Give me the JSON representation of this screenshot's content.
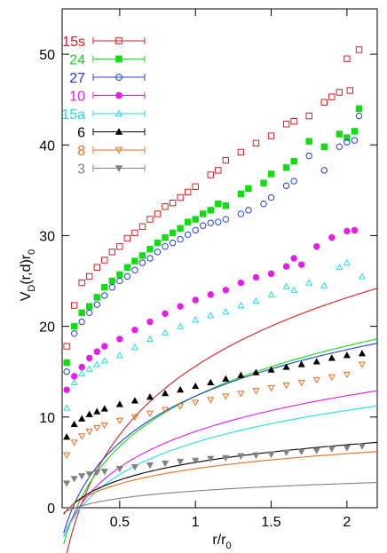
{
  "chart_data": {
    "type": "scatter",
    "title": "",
    "xlabel": "r/r",
    "xlabel_sub": "0",
    "ylabel": "V",
    "ylabel_sub": "D",
    "ylabel_rest": "(r,d)r",
    "ylabel_rest_sub": "0",
    "xlim": [
      0.12,
      2.2
    ],
    "ylim": [
      0,
      55
    ],
    "xticks": [
      0.5,
      1,
      1.5,
      2
    ],
    "xtick_labels": [
      "0.5",
      "1",
      "1.5",
      "2"
    ],
    "yticks": [
      0,
      10,
      20,
      30,
      40,
      50
    ],
    "ytick_labels": [
      "0",
      "10",
      "20",
      "30",
      "40",
      "50"
    ],
    "grid": false,
    "legend_position": "top-left",
    "series": [
      {
        "name": "15s",
        "color": "#e41a1c",
        "marker": "open-square",
        "fit": [
          15.6,
          10.9
        ],
        "points": [
          [
            0.15,
            17.8
          ],
          [
            0.2,
            22.3
          ],
          [
            0.25,
            24.8
          ],
          [
            0.3,
            25.5
          ],
          [
            0.35,
            26.5
          ],
          [
            0.4,
            27.3
          ],
          [
            0.45,
            28.2
          ],
          [
            0.5,
            28.8
          ],
          [
            0.55,
            29.7
          ],
          [
            0.6,
            30.3
          ],
          [
            0.65,
            31.0
          ],
          [
            0.7,
            31.8
          ],
          [
            0.75,
            32.4
          ],
          [
            0.8,
            33.2
          ],
          [
            0.85,
            33.6
          ],
          [
            0.9,
            34.2
          ],
          [
            0.95,
            34.8
          ],
          [
            1.0,
            35.4
          ],
          [
            1.1,
            36.7
          ],
          [
            1.15,
            37.2
          ],
          [
            1.2,
            38.3
          ],
          [
            1.3,
            39.2
          ],
          [
            1.4,
            40.2
          ],
          [
            1.5,
            41.0
          ],
          [
            1.6,
            42.3
          ],
          [
            1.65,
            42.6
          ],
          [
            1.75,
            43.2
          ],
          [
            1.85,
            44.7
          ],
          [
            1.9,
            45.3
          ],
          [
            1.95,
            45.8
          ],
          [
            2.0,
            49.5
          ],
          [
            2.02,
            46.0
          ],
          [
            2.08,
            50.5
          ]
        ]
      },
      {
        "name": "24",
        "color": "#11dd11",
        "marker": "filled-square",
        "fit": [
          12.3,
          8.0
        ],
        "points": [
          [
            0.15,
            16.0
          ],
          [
            0.2,
            20.0
          ],
          [
            0.25,
            21.5
          ],
          [
            0.3,
            22.2
          ],
          [
            0.35,
            23.2
          ],
          [
            0.4,
            24.3
          ],
          [
            0.45,
            25.0
          ],
          [
            0.5,
            25.7
          ],
          [
            0.55,
            26.5
          ],
          [
            0.6,
            27.2
          ],
          [
            0.65,
            27.8
          ],
          [
            0.7,
            28.5
          ],
          [
            0.75,
            29.2
          ],
          [
            0.8,
            29.8
          ],
          [
            0.85,
            30.3
          ],
          [
            0.9,
            30.8
          ],
          [
            0.95,
            31.5
          ],
          [
            1.0,
            31.8
          ],
          [
            1.05,
            32.4
          ],
          [
            1.1,
            32.8
          ],
          [
            1.15,
            33.5
          ],
          [
            1.2,
            33.3
          ],
          [
            1.3,
            34.6
          ],
          [
            1.35,
            35.2
          ],
          [
            1.45,
            35.8
          ],
          [
            1.5,
            36.8
          ],
          [
            1.6,
            37.5
          ],
          [
            1.65,
            38.2
          ],
          [
            1.75,
            40.4
          ],
          [
            1.85,
            39.8
          ],
          [
            1.95,
            41.2
          ],
          [
            2.0,
            40.8
          ],
          [
            2.05,
            41.5
          ],
          [
            2.08,
            44.0
          ]
        ]
      },
      {
        "name": "27",
        "color": "#1f3fd8",
        "marker": "open-circle",
        "fit": [
          12.3,
          7.4
        ],
        "points": [
          [
            0.15,
            15.0
          ],
          [
            0.2,
            19.2
          ],
          [
            0.25,
            20.5
          ],
          [
            0.3,
            21.5
          ],
          [
            0.35,
            22.4
          ],
          [
            0.4,
            23.4
          ],
          [
            0.45,
            24.3
          ],
          [
            0.5,
            25.0
          ],
          [
            0.55,
            25.5
          ],
          [
            0.6,
            26.2
          ],
          [
            0.65,
            27.0
          ],
          [
            0.7,
            27.5
          ],
          [
            0.75,
            28.2
          ],
          [
            0.8,
            28.8
          ],
          [
            0.85,
            29.2
          ],
          [
            0.9,
            29.6
          ],
          [
            0.95,
            30.1
          ],
          [
            1.0,
            30.6
          ],
          [
            1.05,
            31.1
          ],
          [
            1.1,
            31.4
          ],
          [
            1.15,
            31.5
          ],
          [
            1.2,
            31.8
          ],
          [
            1.3,
            32.4
          ],
          [
            1.35,
            32.8
          ],
          [
            1.45,
            33.5
          ],
          [
            1.5,
            34.2
          ],
          [
            1.6,
            35.5
          ],
          [
            1.65,
            36.0
          ],
          [
            1.75,
            38.8
          ],
          [
            1.85,
            37.2
          ],
          [
            1.95,
            39.8
          ],
          [
            2.0,
            40.3
          ],
          [
            2.05,
            40.5
          ],
          [
            2.08,
            43.2
          ]
        ]
      },
      {
        "name": "10",
        "color": "#e81be8",
        "marker": "filled-circle",
        "fit": [
          8.4,
          5.7
        ],
        "points": [
          [
            0.15,
            13.0
          ],
          [
            0.2,
            14.5
          ],
          [
            0.25,
            15.5
          ],
          [
            0.3,
            16.5
          ],
          [
            0.35,
            17.2
          ],
          [
            0.4,
            17.8
          ],
          [
            0.5,
            18.6
          ],
          [
            0.6,
            19.6
          ],
          [
            0.7,
            20.5
          ],
          [
            0.8,
            21.4
          ],
          [
            0.9,
            22.2
          ],
          [
            1.0,
            22.9
          ],
          [
            1.1,
            23.5
          ],
          [
            1.2,
            24.0
          ],
          [
            1.3,
            24.8
          ],
          [
            1.4,
            25.4
          ],
          [
            1.5,
            25.8
          ],
          [
            1.6,
            26.6
          ],
          [
            1.65,
            27.5
          ],
          [
            1.7,
            26.8
          ],
          [
            1.8,
            28.8
          ],
          [
            1.9,
            29.8
          ],
          [
            2.0,
            30.5
          ],
          [
            2.05,
            30.6
          ]
        ]
      },
      {
        "name": "15a",
        "color": "#1ee0e6",
        "marker": "open-triangle",
        "fit": [
          7.2,
          5.1
        ],
        "points": [
          [
            0.15,
            11.0
          ],
          [
            0.2,
            13.8
          ],
          [
            0.25,
            14.8
          ],
          [
            0.3,
            15.3
          ],
          [
            0.35,
            15.8
          ],
          [
            0.4,
            16.2
          ],
          [
            0.5,
            16.8
          ],
          [
            0.6,
            17.7
          ],
          [
            0.7,
            18.6
          ],
          [
            0.8,
            19.3
          ],
          [
            0.9,
            20.0
          ],
          [
            1.0,
            20.7
          ],
          [
            1.1,
            21.2
          ],
          [
            1.2,
            21.6
          ],
          [
            1.3,
            22.3
          ],
          [
            1.4,
            22.8
          ],
          [
            1.5,
            23.5
          ],
          [
            1.6,
            24.4
          ],
          [
            1.65,
            24.0
          ],
          [
            1.75,
            24.8
          ],
          [
            1.85,
            24.5
          ],
          [
            1.95,
            26.5
          ],
          [
            2.0,
            27.0
          ],
          [
            2.1,
            25.5
          ]
        ]
      },
      {
        "name": "6",
        "color": "#000000",
        "marker": "filled-triangle",
        "fit": [
          5.0,
          2.8
        ],
        "points": [
          [
            0.15,
            7.8
          ],
          [
            0.2,
            9.2
          ],
          [
            0.25,
            9.8
          ],
          [
            0.3,
            10.3
          ],
          [
            0.35,
            10.6
          ],
          [
            0.4,
            10.9
          ],
          [
            0.5,
            11.4
          ],
          [
            0.6,
            11.8
          ],
          [
            0.7,
            12.2
          ],
          [
            0.8,
            12.6
          ],
          [
            0.9,
            13.0
          ],
          [
            1.0,
            13.4
          ],
          [
            1.1,
            13.8
          ],
          [
            1.2,
            14.2
          ],
          [
            1.3,
            14.6
          ],
          [
            1.4,
            14.9
          ],
          [
            1.5,
            15.2
          ],
          [
            1.6,
            15.5
          ],
          [
            1.7,
            15.8
          ],
          [
            1.8,
            16.1
          ],
          [
            1.9,
            16.5
          ],
          [
            2.0,
            16.8
          ],
          [
            2.1,
            17.0
          ]
        ]
      },
      {
        "name": "8",
        "color": "#f26a1b",
        "marker": "open-inverted-triangle",
        "fit": [
          4.3,
          2.4
        ],
        "points": [
          [
            0.15,
            5.8
          ],
          [
            0.2,
            7.2
          ],
          [
            0.25,
            7.9
          ],
          [
            0.3,
            8.4
          ],
          [
            0.35,
            8.8
          ],
          [
            0.4,
            9.1
          ],
          [
            0.5,
            9.6
          ],
          [
            0.6,
            10.0
          ],
          [
            0.7,
            10.4
          ],
          [
            0.8,
            10.8
          ],
          [
            0.9,
            11.2
          ],
          [
            1.0,
            11.6
          ],
          [
            1.1,
            11.9
          ],
          [
            1.2,
            12.3
          ],
          [
            1.3,
            12.6
          ],
          [
            1.4,
            12.9
          ],
          [
            1.5,
            13.2
          ],
          [
            1.6,
            13.5
          ],
          [
            1.7,
            13.8
          ],
          [
            1.8,
            14.1
          ],
          [
            1.9,
            14.4
          ],
          [
            2.0,
            14.7
          ],
          [
            2.1,
            15.8
          ]
        ]
      },
      {
        "name": "3",
        "color": "#808080",
        "marker": "filled-inverted-triangle",
        "fit": [
          1.85,
          1.18
        ],
        "points": [
          [
            0.15,
            2.7
          ],
          [
            0.2,
            3.2
          ],
          [
            0.25,
            3.5
          ],
          [
            0.3,
            3.7
          ],
          [
            0.35,
            3.9
          ],
          [
            0.4,
            4.0
          ],
          [
            0.5,
            4.3
          ],
          [
            0.6,
            4.5
          ],
          [
            0.7,
            4.7
          ],
          [
            0.8,
            4.9
          ],
          [
            0.9,
            5.1
          ],
          [
            1.0,
            5.2
          ],
          [
            1.1,
            5.4
          ],
          [
            1.2,
            5.5
          ],
          [
            1.3,
            5.7
          ],
          [
            1.4,
            5.8
          ],
          [
            1.5,
            5.9
          ],
          [
            1.6,
            6.1
          ],
          [
            1.7,
            6.2
          ],
          [
            1.8,
            6.3
          ],
          [
            1.9,
            6.5
          ],
          [
            2.0,
            6.6
          ],
          [
            2.1,
            6.8
          ]
        ]
      }
    ]
  }
}
